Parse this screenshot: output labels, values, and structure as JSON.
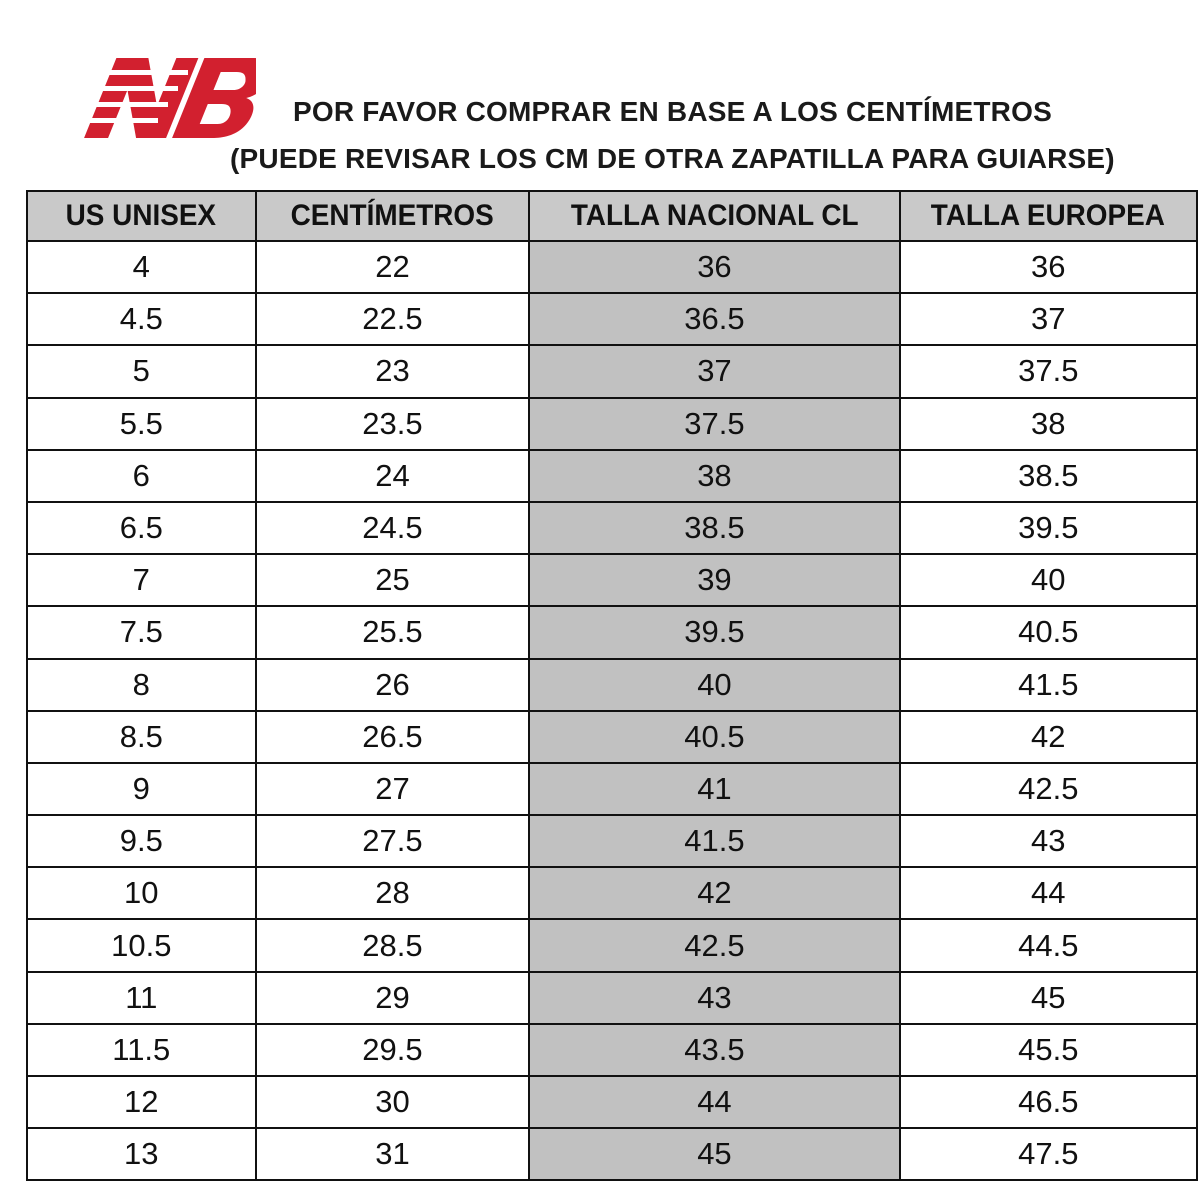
{
  "brand": {
    "logo_text": "NB",
    "color": "#d2202f"
  },
  "title_lines": [
    "POR FAVOR COMPRAR EN BASE A LOS CENTÍMETROS",
    "(PUEDE REVISAR LOS CM DE OTRA ZAPATILLA PARA GUIARSE)"
  ],
  "table": {
    "headers": [
      "US UNISEX",
      "CENTÍMETROS",
      "TALLA NACIONAL CL",
      "TALLA EUROPEA"
    ],
    "shaded_column": 2,
    "rows": [
      [
        "4",
        "22",
        "36",
        "36"
      ],
      [
        "4.5",
        "22.5",
        "36.5",
        "37"
      ],
      [
        "5",
        "23",
        "37",
        "37.5"
      ],
      [
        "5.5",
        "23.5",
        "37.5",
        "38"
      ],
      [
        "6",
        "24",
        "38",
        "38.5"
      ],
      [
        "6.5",
        "24.5",
        "38.5",
        "39.5"
      ],
      [
        "7",
        "25",
        "39",
        "40"
      ],
      [
        "7.5",
        "25.5",
        "39.5",
        "40.5"
      ],
      [
        "8",
        "26",
        "40",
        "41.5"
      ],
      [
        "8.5",
        "26.5",
        "40.5",
        "42"
      ],
      [
        "9",
        "27",
        "41",
        "42.5"
      ],
      [
        "9.5",
        "27.5",
        "41.5",
        "43"
      ],
      [
        "10",
        "28",
        "42",
        "44"
      ],
      [
        "10.5",
        "28.5",
        "42.5",
        "44.5"
      ],
      [
        "11",
        "29",
        "43",
        "45"
      ],
      [
        "11.5",
        "29.5",
        "43.5",
        "45.5"
      ],
      [
        "12",
        "30",
        "44",
        "46.5"
      ],
      [
        "13",
        "31",
        "45",
        "47.5"
      ]
    ]
  }
}
